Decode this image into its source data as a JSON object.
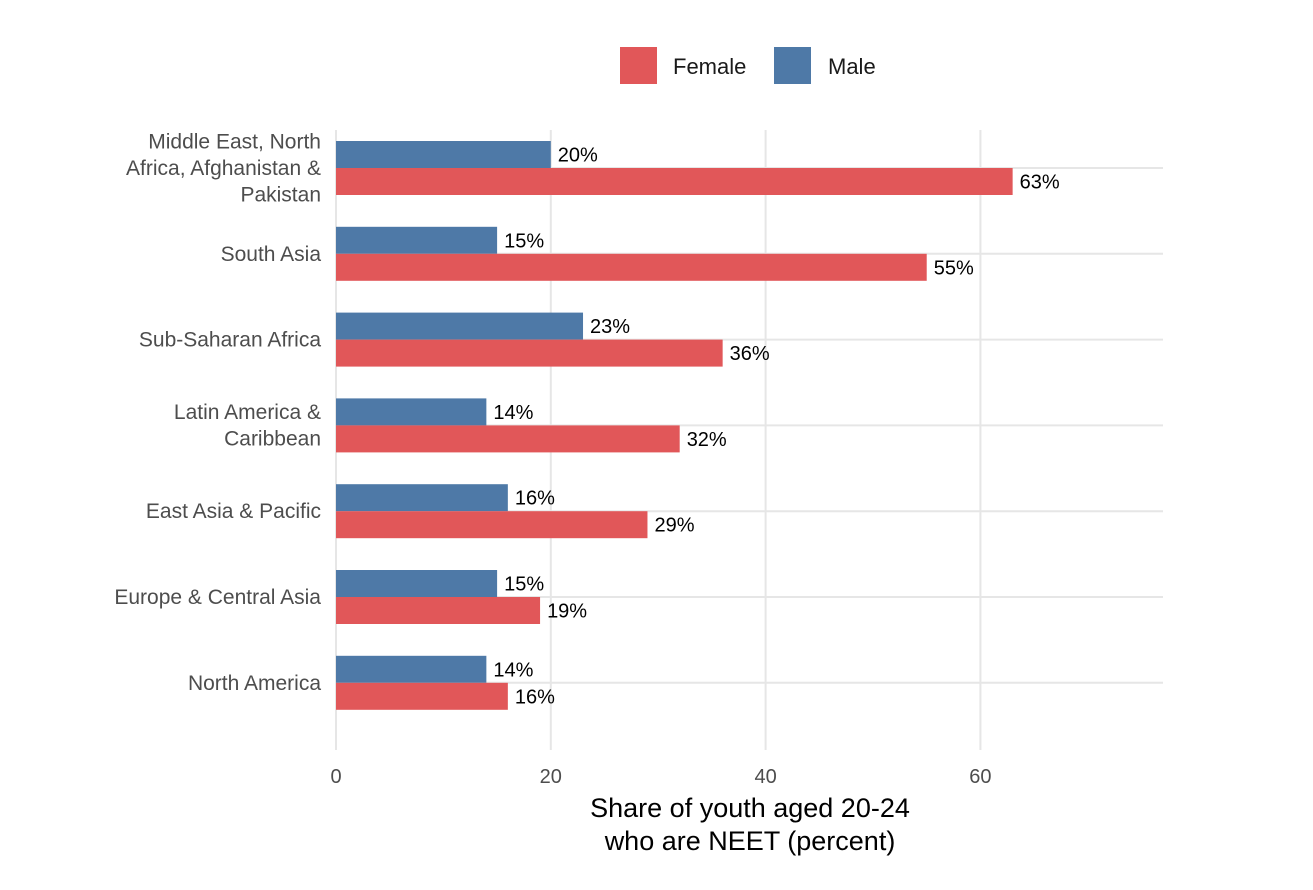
{
  "chart_data": {
    "type": "bar",
    "orientation": "horizontal",
    "categories": [
      [
        "Middle East, North",
        "Africa, Afghanistan &",
        "Pakistan"
      ],
      [
        "South Asia"
      ],
      [
        "Sub-Saharan Africa"
      ],
      [
        "Latin America &",
        "Caribbean"
      ],
      [
        "East Asia & Pacific"
      ],
      [
        "Europe & Central Asia"
      ],
      [
        "North America"
      ]
    ],
    "series": [
      {
        "name": "Male",
        "color": "#4e79a7",
        "values": [
          20,
          15,
          23,
          14,
          16,
          15,
          14
        ],
        "labels": [
          "20%",
          "15%",
          "23%",
          "14%",
          "16%",
          "15%",
          "14%"
        ]
      },
      {
        "name": "Female",
        "color": "#e15759",
        "values": [
          63,
          55,
          36,
          32,
          29,
          19,
          16
        ],
        "labels": [
          "63%",
          "55%",
          "36%",
          "32%",
          "29%",
          "19%",
          "16%"
        ]
      }
    ],
    "legend": {
      "position": "top",
      "entries": [
        {
          "name": "Female",
          "color": "#e15759"
        },
        {
          "name": "Male",
          "color": "#4e79a7"
        }
      ]
    },
    "xlim": [
      0,
      77
    ],
    "xticks": [
      0,
      20,
      40,
      60
    ],
    "xtick_labels": [
      "0",
      "20",
      "40",
      "60"
    ],
    "xlabel": [
      "Share of youth aged 20-24",
      "who are NEET (percent)"
    ],
    "ylabel": "",
    "title": "",
    "grid": true
  }
}
